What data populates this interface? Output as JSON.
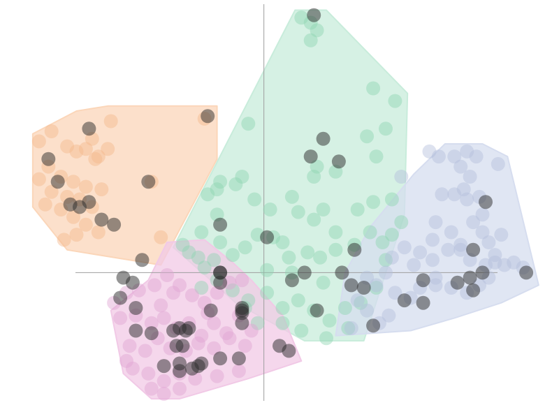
{
  "chart_data": {
    "type": "scatter",
    "title": "",
    "xlabel": "",
    "ylabel": "",
    "xlim": [
      -8.45,
      9.45
    ],
    "ylim": [
      -5.8,
      10.8
    ],
    "grid": false,
    "axes_style": "crosshair-at-origin",
    "hull_colors": [
      "#fbd6b9",
      "#c8ecdb",
      "#d6ddef",
      "#f1c9e6"
    ],
    "highlight_color": "#2b2b2b",
    "series": [
      {
        "color": "#f4b98b",
        "hull": [
          [
            -7.4,
            5.5
          ],
          [
            -6.0,
            6.4
          ],
          [
            -5.0,
            6.6
          ],
          [
            -1.5,
            6.6
          ],
          [
            -1.5,
            4.5
          ],
          [
            -3.3,
            0.3
          ],
          [
            -6.3,
            0.9
          ],
          [
            -7.4,
            2.6
          ]
        ],
        "points": [
          [
            -7.2,
            5.2
          ],
          [
            -6.8,
            5.6
          ],
          [
            -6.3,
            5.0
          ],
          [
            -6.0,
            4.8
          ],
          [
            -5.5,
            5.3
          ],
          [
            -5.3,
            4.6
          ],
          [
            -6.9,
            4.2
          ],
          [
            -6.5,
            3.8
          ],
          [
            -6.1,
            3.6
          ],
          [
            -5.7,
            3.4
          ],
          [
            -7.2,
            3.7
          ],
          [
            -6.8,
            3.2
          ],
          [
            -6.3,
            3.0
          ],
          [
            -5.9,
            2.9
          ],
          [
            -5.5,
            2.6
          ],
          [
            -5.2,
            3.3
          ],
          [
            -7.0,
            2.7
          ],
          [
            -6.5,
            2.5
          ],
          [
            -6.1,
            2.2
          ],
          [
            -5.7,
            1.9
          ],
          [
            -5.3,
            1.6
          ],
          [
            -6.0,
            1.5
          ],
          [
            -6.4,
            1.3
          ],
          [
            -5.0,
            4.9
          ],
          [
            -4.9,
            6.0
          ],
          [
            -3.6,
            3.6
          ],
          [
            -3.3,
            1.4
          ],
          [
            -1.9,
            6.1
          ],
          [
            -5.4,
            4.5
          ],
          [
            -5.7,
            4.9
          ]
        ],
        "highlight": [
          [
            -5.6,
            5.7
          ],
          [
            -6.9,
            4.5
          ],
          [
            -6.6,
            3.6
          ],
          [
            -5.9,
            2.6
          ],
          [
            -6.2,
            2.7
          ],
          [
            -5.6,
            2.8
          ],
          [
            -5.2,
            2.1
          ],
          [
            -4.8,
            1.9
          ],
          [
            -3.7,
            3.6
          ],
          [
            -1.8,
            6.2
          ]
        ]
      },
      {
        "color": "#8fd4b1",
        "hull": [
          [
            1.0,
            10.4
          ],
          [
            2.0,
            10.4
          ],
          [
            4.6,
            7.1
          ],
          [
            4.5,
            2.3
          ],
          [
            3.2,
            -2.7
          ],
          [
            1.3,
            -2.7
          ],
          [
            -0.9,
            -1.2
          ],
          [
            -1.7,
            -0.3
          ],
          [
            -2.9,
            1.0
          ]
        ],
        "points": [
          [
            1.2,
            10.1
          ],
          [
            1.7,
            9.6
          ],
          [
            1.5,
            9.2
          ],
          [
            1.5,
            9.9
          ],
          [
            3.5,
            7.3
          ],
          [
            4.2,
            6.8
          ],
          [
            3.9,
            5.7
          ],
          [
            3.3,
            5.4
          ],
          [
            3.6,
            4.6
          ],
          [
            -0.5,
            5.9
          ],
          [
            1.7,
            4.2
          ],
          [
            0.9,
            3.0
          ],
          [
            1.1,
            2.4
          ],
          [
            1.9,
            2.5
          ],
          [
            2.3,
            1.6
          ],
          [
            3.0,
            2.5
          ],
          [
            3.5,
            2.8
          ],
          [
            4.1,
            2.9
          ],
          [
            4.4,
            2.0
          ],
          [
            4.1,
            1.5
          ],
          [
            3.8,
            1.2
          ],
          [
            3.4,
            1.6
          ],
          [
            2.9,
            1.1
          ],
          [
            2.3,
            0.9
          ],
          [
            1.8,
            0.6
          ],
          [
            1.4,
            0.8
          ],
          [
            0.8,
            0.6
          ],
          [
            0.3,
            1.4
          ],
          [
            -0.2,
            1.5
          ],
          [
            -0.6,
            1.0
          ],
          [
            -1.0,
            0.7
          ],
          [
            -1.4,
            1.2
          ],
          [
            -1.6,
            0.5
          ],
          [
            -1.9,
            0.2
          ],
          [
            -2.1,
            0.6
          ],
          [
            -2.4,
            0.8
          ],
          [
            -2.6,
            1.1
          ],
          [
            -2.0,
            1.6
          ],
          [
            -1.5,
            2.3
          ],
          [
            -1.8,
            3.1
          ],
          [
            -1.4,
            3.6
          ],
          [
            -0.9,
            3.5
          ],
          [
            -0.3,
            2.9
          ],
          [
            0.2,
            2.5
          ],
          [
            1.6,
            2.1
          ],
          [
            -2.0,
            -0.6
          ],
          [
            -1.5,
            -0.3
          ],
          [
            -1.0,
            -0.7
          ],
          [
            -0.5,
            -1.1
          ],
          [
            0.1,
            -0.8
          ],
          [
            0.6,
            -1.4
          ],
          [
            1.1,
            -1.1
          ],
          [
            1.6,
            -1.5
          ],
          [
            2.1,
            -1.9
          ],
          [
            2.6,
            -1.4
          ],
          [
            3.1,
            -1.2
          ],
          [
            3.6,
            -0.6
          ],
          [
            0.6,
            -2.0
          ],
          [
            1.2,
            -2.3
          ],
          [
            2.0,
            -2.6
          ],
          [
            2.7,
            -2.2
          ],
          [
            -0.2,
            -2.0
          ],
          [
            -0.6,
            -1.4
          ],
          [
            0.9,
            0.0
          ],
          [
            1.9,
            -0.4
          ],
          [
            3.9,
            0.5
          ],
          [
            0.1,
            0.1
          ],
          [
            -1.5,
            3.3
          ],
          [
            -0.7,
            3.8
          ],
          [
            1.6,
            3.8
          ],
          [
            2.3,
            4.0
          ],
          [
            0.6,
            1.2
          ]
        ],
        "highlight": [
          [
            1.6,
            10.2
          ],
          [
            1.9,
            5.3
          ],
          [
            1.5,
            4.6
          ],
          [
            2.4,
            4.4
          ],
          [
            -1.4,
            1.9
          ],
          [
            0.1,
            1.4
          ],
          [
            2.9,
            0.9
          ],
          [
            -1.4,
            0.0
          ],
          [
            1.3,
            0.0
          ],
          [
            0.9,
            -0.3
          ],
          [
            2.5,
            0.0
          ],
          [
            2.8,
            -0.5
          ],
          [
            3.2,
            -0.6
          ],
          [
            -0.7,
            -2.0
          ],
          [
            -0.7,
            -1.4
          ],
          [
            1.7,
            -1.5
          ],
          [
            3.5,
            -2.1
          ]
        ]
      },
      {
        "color": "#b3bedc",
        "hull": [
          [
            4.8,
            3.9
          ],
          [
            5.8,
            5.1
          ],
          [
            7.0,
            5.1
          ],
          [
            7.8,
            4.6
          ],
          [
            8.8,
            -0.5
          ],
          [
            7.6,
            -1.2
          ],
          [
            6.1,
            -1.8
          ],
          [
            4.7,
            -2.3
          ],
          [
            2.3,
            -2.5
          ],
          [
            2.6,
            0.0
          ],
          [
            3.4,
            1.8
          ]
        ],
        "points": [
          [
            5.3,
            4.8
          ],
          [
            5.6,
            4.6
          ],
          [
            6.1,
            4.6
          ],
          [
            6.5,
            4.8
          ],
          [
            6.8,
            4.6
          ],
          [
            6.3,
            4.2
          ],
          [
            6.6,
            3.8
          ],
          [
            7.5,
            4.3
          ],
          [
            4.4,
            3.8
          ],
          [
            5.7,
            3.1
          ],
          [
            6.1,
            3.1
          ],
          [
            6.4,
            3.3
          ],
          [
            6.9,
            3.0
          ],
          [
            6.5,
            2.9
          ],
          [
            7.0,
            2.3
          ],
          [
            6.7,
            2.0
          ],
          [
            5.5,
            2.0
          ],
          [
            6.0,
            1.6
          ],
          [
            6.3,
            1.1
          ],
          [
            7.0,
            1.6
          ],
          [
            7.2,
            1.2
          ],
          [
            7.6,
            1.5
          ],
          [
            7.4,
            0.7
          ],
          [
            7.1,
            0.3
          ],
          [
            7.7,
            0.3
          ],
          [
            8.0,
            0.4
          ],
          [
            8.3,
            0.2
          ],
          [
            6.6,
            0.5
          ],
          [
            6.3,
            0.9
          ],
          [
            5.9,
            0.9
          ],
          [
            5.4,
            0.5
          ],
          [
            4.8,
            0.3
          ],
          [
            5.0,
            0.8
          ],
          [
            5.4,
            1.3
          ],
          [
            4.5,
            1.0
          ],
          [
            4.1,
            0.6
          ],
          [
            3.9,
            0.0
          ],
          [
            3.6,
            -0.5
          ],
          [
            4.2,
            -0.8
          ],
          [
            4.7,
            -1.0
          ],
          [
            5.0,
            -0.6
          ],
          [
            5.5,
            -0.5
          ],
          [
            6.0,
            -0.6
          ],
          [
            6.5,
            -0.8
          ],
          [
            6.9,
            -0.5
          ],
          [
            7.2,
            -0.2
          ],
          [
            3.3,
            -1.5
          ],
          [
            4.0,
            -1.7
          ],
          [
            3.7,
            -2.0
          ],
          [
            2.8,
            -2.2
          ],
          [
            3.0,
            -1.1
          ],
          [
            3.3,
            -0.2
          ],
          [
            7.4,
            0.4
          ],
          [
            5.5,
            -0.2
          ]
        ],
        "highlight": [
          [
            7.1,
            2.8
          ],
          [
            6.7,
            0.9
          ],
          [
            5.1,
            -0.3
          ],
          [
            4.5,
            -1.1
          ],
          [
            5.1,
            -1.2
          ],
          [
            6.2,
            -0.4
          ],
          [
            6.6,
            -0.2
          ],
          [
            7.0,
            0.0
          ],
          [
            6.7,
            -0.7
          ],
          [
            8.4,
            0.0
          ]
        ]
      },
      {
        "color": "#e0a3d2",
        "hull": [
          [
            -3.7,
            -0.3
          ],
          [
            -3.1,
            1.2
          ],
          [
            -1.9,
            1.3
          ],
          [
            -1.0,
            0.4
          ],
          [
            -0.4,
            -0.3
          ],
          [
            0.6,
            -1.7
          ],
          [
            1.2,
            -3.5
          ],
          [
            -0.5,
            -4.2
          ],
          [
            -2.7,
            -5.0
          ],
          [
            -3.6,
            -5.0
          ],
          [
            -4.5,
            -4.0
          ],
          [
            -4.9,
            -1.5
          ]
        ],
        "points": [
          [
            -4.8,
            -1.2
          ],
          [
            -4.4,
            -0.8
          ],
          [
            -4.0,
            -0.7
          ],
          [
            -3.5,
            -0.5
          ],
          [
            -3.1,
            -0.1
          ],
          [
            -2.7,
            -0.5
          ],
          [
            -2.3,
            -0.9
          ],
          [
            -1.9,
            -1.2
          ],
          [
            -1.5,
            -0.8
          ],
          [
            -1.1,
            -0.4
          ],
          [
            -0.7,
            -0.3
          ],
          [
            -4.6,
            -1.8
          ],
          [
            -4.1,
            -1.7
          ],
          [
            -3.6,
            -2.0
          ],
          [
            -3.2,
            -1.8
          ],
          [
            -2.8,
            -2.2
          ],
          [
            -2.4,
            -2.0
          ],
          [
            -2.0,
            -2.5
          ],
          [
            -1.6,
            -2.0
          ],
          [
            -1.2,
            -2.4
          ],
          [
            -0.8,
            -1.7
          ],
          [
            -0.4,
            -2.3
          ],
          [
            -4.3,
            -2.9
          ],
          [
            -3.8,
            -3.1
          ],
          [
            -3.4,
            -2.6
          ],
          [
            -3.0,
            -3.0
          ],
          [
            -2.5,
            -3.1
          ],
          [
            -2.1,
            -2.8
          ],
          [
            -1.6,
            -3.0
          ],
          [
            -1.1,
            -2.6
          ],
          [
            -0.6,
            -2.9
          ],
          [
            -4.2,
            -3.8
          ],
          [
            -3.7,
            -4.0
          ],
          [
            -3.2,
            -4.3
          ],
          [
            -2.7,
            -4.0
          ],
          [
            -2.2,
            -4.2
          ],
          [
            -1.5,
            -4.1
          ],
          [
            -0.8,
            -3.9
          ],
          [
            -3.2,
            -4.8
          ],
          [
            -3.6,
            -4.6
          ],
          [
            -2.7,
            -4.6
          ],
          [
            -4.4,
            -3.5
          ],
          [
            -2.9,
            -0.8
          ],
          [
            -3.3,
            -1.3
          ],
          [
            -1.8,
            -1.6
          ]
        ],
        "highlight": [
          [
            -3.9,
            0.5
          ],
          [
            -4.5,
            -0.2
          ],
          [
            -4.2,
            -0.4
          ],
          [
            -4.6,
            -1.0
          ],
          [
            -4.1,
            -1.4
          ],
          [
            -1.4,
            0.0
          ],
          [
            -1.4,
            -0.4
          ],
          [
            -4.1,
            -2.3
          ],
          [
            -3.6,
            -2.4
          ],
          [
            -2.9,
            -2.3
          ],
          [
            -2.7,
            -2.2
          ],
          [
            -2.5,
            -2.3
          ],
          [
            -2.4,
            -2.2
          ],
          [
            -2.8,
            -2.9
          ],
          [
            -2.6,
            -2.9
          ],
          [
            -3.2,
            -3.7
          ],
          [
            -2.7,
            -3.6
          ],
          [
            -2.7,
            -3.9
          ],
          [
            -2.3,
            -3.8
          ],
          [
            -2.0,
            -3.6
          ],
          [
            -2.1,
            -3.7
          ],
          [
            -1.4,
            -3.4
          ],
          [
            -0.8,
            -3.4
          ],
          [
            -1.7,
            -1.5
          ],
          [
            -0.7,
            -1.6
          ],
          [
            -0.7,
            -1.5
          ],
          [
            0.5,
            -2.9
          ],
          [
            0.8,
            -3.1
          ]
        ]
      }
    ]
  }
}
